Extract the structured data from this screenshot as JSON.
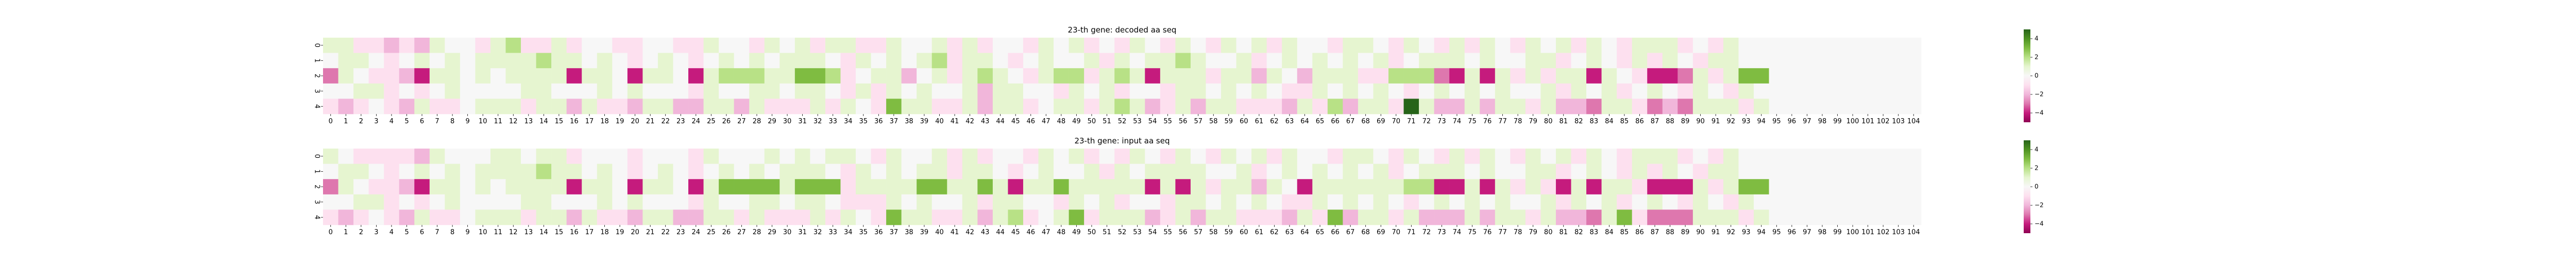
{
  "chart_data": [
    {
      "type": "heatmap",
      "title": "23-th gene: decoded aa seq",
      "x_tick_labels": [
        "0",
        "1",
        "2",
        "3",
        "4",
        "5",
        "6",
        "7",
        "8",
        "9",
        "10",
        "11",
        "12",
        "13",
        "14",
        "15",
        "16",
        "17",
        "18",
        "19",
        "20",
        "21",
        "22",
        "23",
        "24",
        "25",
        "26",
        "27",
        "28",
        "29",
        "30",
        "31",
        "32",
        "33",
        "34",
        "35",
        "36",
        "37",
        "38",
        "39",
        "40",
        "41",
        "42",
        "43",
        "44",
        "45",
        "46",
        "47",
        "48",
        "49",
        "50",
        "51",
        "52",
        "53",
        "54",
        "55",
        "56",
        "57",
        "58",
        "59",
        "60",
        "61",
        "62",
        "63",
        "64",
        "65",
        "66",
        "67",
        "68",
        "69",
        "70",
        "71",
        "72",
        "73",
        "74",
        "75",
        "76",
        "77",
        "78",
        "79",
        "80",
        "81",
        "82",
        "83",
        "84",
        "85",
        "86",
        "87",
        "88",
        "89",
        "90",
        "91",
        "92",
        "93",
        "94",
        "95",
        "96",
        "97",
        "98",
        "99",
        "100",
        "101",
        "102",
        "103",
        "104"
      ],
      "y_tick_labels": [
        "0",
        "1",
        "2",
        "3",
        "4"
      ],
      "colormap": "PiYG",
      "vmin": -5,
      "vmax": 5,
      "colorbar_ticks": [
        "4",
        "2",
        "0",
        "−2",
        "−4"
      ],
      "colorbar_tick_values": [
        4,
        2,
        0,
        -2,
        -4
      ],
      "values": [
        [
          1,
          1,
          -1,
          -1,
          -2,
          -1,
          -2,
          1,
          0,
          0,
          -1,
          1,
          2,
          -1,
          -1,
          1,
          -1,
          0,
          0,
          -1,
          -1,
          0,
          0,
          -1,
          -1,
          1,
          0,
          0,
          -1,
          1,
          0,
          1,
          -1,
          1,
          1,
          -1,
          -1,
          1,
          0,
          0,
          1,
          -1,
          1,
          -1,
          0,
          0,
          -1,
          1,
          0,
          1,
          -1,
          0,
          -1,
          1,
          0,
          -1,
          1,
          0,
          -1,
          1,
          0,
          1,
          -1,
          1,
          0,
          0,
          -1,
          1,
          1,
          0,
          -1,
          1,
          0,
          -1,
          1,
          -1,
          1,
          0,
          -1,
          1,
          0,
          1,
          -1,
          1,
          0,
          -1,
          1,
          1,
          1,
          -1,
          0,
          -1,
          1,
          0,
          0,
          0,
          0,
          0,
          0,
          0,
          0,
          0,
          0,
          0,
          0
        ],
        [
          0,
          1,
          1,
          0,
          -1,
          0,
          1,
          0,
          1,
          0,
          1,
          1,
          1,
          1,
          2,
          1,
          1,
          0,
          1,
          0,
          -1,
          0,
          1,
          0,
          -1,
          0,
          1,
          0,
          1,
          0,
          1,
          1,
          1,
          0,
          -1,
          1,
          0,
          1,
          0,
          1,
          2,
          -1,
          1,
          1,
          0,
          -1,
          0,
          1,
          0,
          0,
          1,
          -1,
          1,
          0,
          1,
          1,
          2,
          1,
          0,
          0,
          1,
          -1,
          0,
          1,
          0,
          1,
          0,
          1,
          0,
          1,
          -1,
          0,
          1,
          1,
          1,
          0,
          1,
          0,
          0,
          1,
          1,
          -1,
          0,
          1,
          0,
          -1,
          1,
          -1,
          1,
          0,
          -1,
          1,
          1,
          0,
          0,
          0,
          0,
          0,
          0,
          0,
          0,
          0,
          0,
          0,
          0
        ],
        [
          -3,
          1,
          0,
          -1,
          -1,
          -2,
          -4,
          1,
          1,
          0,
          1,
          0,
          1,
          1,
          1,
          1,
          -4,
          1,
          1,
          0,
          -4,
          1,
          1,
          0,
          -4,
          1,
          2,
          2,
          2,
          1,
          1,
          3,
          3,
          2,
          -1,
          0,
          1,
          1,
          -2,
          0,
          1,
          -1,
          1,
          2,
          1,
          0,
          -1,
          1,
          2,
          2,
          -1,
          1,
          2,
          1,
          -4,
          1,
          1,
          1,
          -1,
          1,
          1,
          -2,
          1,
          0,
          -2,
          1,
          1,
          1,
          -1,
          -1,
          2,
          2,
          2,
          -3,
          -4,
          1,
          -4,
          1,
          -1,
          1,
          -1,
          1,
          1,
          -4,
          1,
          0,
          -1,
          -4,
          -4,
          -3,
          1,
          -1,
          1,
          3,
          3,
          0,
          0,
          0,
          0,
          0,
          0,
          0,
          0,
          0,
          0
        ],
        [
          0,
          0,
          1,
          1,
          -1,
          0,
          -1,
          0,
          1,
          0,
          0,
          0,
          0,
          1,
          1,
          0,
          0,
          0,
          1,
          0,
          1,
          0,
          0,
          0,
          -1,
          1,
          0,
          0,
          1,
          1,
          0,
          1,
          1,
          0,
          -1,
          1,
          -1,
          1,
          0,
          1,
          0,
          0,
          1,
          -2,
          1,
          1,
          0,
          0,
          -1,
          1,
          0,
          1,
          -1,
          0,
          0,
          -1,
          1,
          1,
          0,
          1,
          0,
          1,
          0,
          -1,
          -1,
          1,
          0,
          1,
          0,
          1,
          0,
          -1,
          0,
          1,
          0,
          1,
          0,
          1,
          0,
          0,
          1,
          -1,
          1,
          0,
          1,
          -1,
          0,
          1,
          0,
          -1,
          1,
          0,
          -1,
          1,
          0,
          0,
          0,
          0,
          0,
          0,
          0,
          0,
          0,
          0,
          0
        ],
        [
          -1,
          -2,
          -1,
          0,
          -1,
          -2,
          1,
          -1,
          -1,
          0,
          1,
          1,
          1,
          -1,
          1,
          1,
          -2,
          1,
          -1,
          -1,
          -2,
          1,
          1,
          -2,
          -2,
          1,
          1,
          -2,
          1,
          -1,
          -1,
          -1,
          1,
          -1,
          1,
          0,
          -1,
          3,
          1,
          1,
          -1,
          -1,
          1,
          -2,
          1,
          1,
          -1,
          0,
          1,
          1,
          -1,
          1,
          2,
          1,
          -2,
          -1,
          1,
          -2,
          1,
          1,
          -1,
          -1,
          -1,
          -2,
          1,
          -1,
          2,
          -2,
          1,
          1,
          -1,
          5,
          1,
          -2,
          -2,
          1,
          -2,
          1,
          1,
          -1,
          1,
          -2,
          -2,
          -3,
          1,
          1,
          -1,
          -3,
          -2,
          -3,
          1,
          1,
          1,
          -1,
          1,
          0,
          0,
          0,
          0,
          0,
          0,
          0,
          0,
          0,
          0
        ]
      ]
    },
    {
      "type": "heatmap",
      "title": "23-th gene: input aa seq",
      "x_tick_labels": [
        "0",
        "1",
        "2",
        "3",
        "4",
        "5",
        "6",
        "7",
        "8",
        "9",
        "10",
        "11",
        "12",
        "13",
        "14",
        "15",
        "16",
        "17",
        "18",
        "19",
        "20",
        "21",
        "22",
        "23",
        "24",
        "25",
        "26",
        "27",
        "28",
        "29",
        "30",
        "31",
        "32",
        "33",
        "34",
        "35",
        "36",
        "37",
        "38",
        "39",
        "40",
        "41",
        "42",
        "43",
        "44",
        "45",
        "46",
        "47",
        "48",
        "49",
        "50",
        "51",
        "52",
        "53",
        "54",
        "55",
        "56",
        "57",
        "58",
        "59",
        "60",
        "61",
        "62",
        "63",
        "64",
        "65",
        "66",
        "67",
        "68",
        "69",
        "70",
        "71",
        "72",
        "73",
        "74",
        "75",
        "76",
        "77",
        "78",
        "79",
        "80",
        "81",
        "82",
        "83",
        "84",
        "85",
        "86",
        "87",
        "88",
        "89",
        "90",
        "91",
        "92",
        "93",
        "94",
        "95",
        "96",
        "97",
        "98",
        "99",
        "100",
        "101",
        "102",
        "103",
        "104"
      ],
      "y_tick_labels": [
        "0",
        "1",
        "2",
        "3",
        "4"
      ],
      "colormap": "PiYG",
      "vmin": -5,
      "vmax": 5,
      "colorbar_ticks": [
        "4",
        "2",
        "0",
        "−2",
        "−4"
      ],
      "colorbar_tick_values": [
        4,
        2,
        0,
        -2,
        -4
      ],
      "values": [
        [
          1,
          0,
          -1,
          -1,
          -1,
          -1,
          -2,
          1,
          0,
          0,
          0,
          1,
          1,
          0,
          1,
          1,
          -1,
          0,
          0,
          0,
          -1,
          0,
          0,
          0,
          -1,
          1,
          0,
          0,
          0,
          1,
          0,
          1,
          0,
          1,
          1,
          0,
          -1,
          1,
          0,
          0,
          1,
          -1,
          1,
          -1,
          0,
          0,
          -1,
          1,
          0,
          1,
          -1,
          0,
          -1,
          1,
          0,
          -1,
          1,
          0,
          -1,
          1,
          0,
          1,
          -1,
          1,
          0,
          0,
          -1,
          1,
          1,
          0,
          -1,
          1,
          0,
          -1,
          1,
          -1,
          1,
          0,
          -1,
          1,
          0,
          1,
          -1,
          1,
          0,
          -1,
          1,
          1,
          1,
          -1,
          0,
          -1,
          1,
          0,
          0,
          0,
          0,
          0,
          0,
          0,
          0,
          0,
          0,
          0,
          0
        ],
        [
          0,
          1,
          1,
          0,
          -1,
          0,
          1,
          0,
          1,
          0,
          1,
          1,
          1,
          1,
          2,
          1,
          1,
          0,
          1,
          0,
          -1,
          0,
          1,
          0,
          -1,
          0,
          1,
          0,
          1,
          0,
          1,
          1,
          1,
          0,
          -1,
          1,
          0,
          1,
          0,
          1,
          1,
          -1,
          1,
          1,
          0,
          -1,
          0,
          1,
          0,
          0,
          1,
          -1,
          1,
          0,
          1,
          1,
          1,
          1,
          0,
          0,
          1,
          -1,
          0,
          1,
          0,
          1,
          0,
          1,
          0,
          1,
          -1,
          0,
          1,
          1,
          1,
          0,
          1,
          0,
          0,
          1,
          1,
          -1,
          0,
          1,
          0,
          -1,
          1,
          -1,
          1,
          0,
          -1,
          1,
          1,
          0,
          0,
          0,
          0,
          0,
          0,
          0,
          0,
          0,
          0,
          0,
          0
        ],
        [
          -3,
          1,
          0,
          -1,
          -1,
          -2,
          -4,
          1,
          1,
          0,
          1,
          0,
          1,
          1,
          1,
          1,
          -4,
          1,
          1,
          0,
          -4,
          1,
          1,
          0,
          -4,
          1,
          3,
          3,
          3,
          3,
          1,
          3,
          3,
          3,
          -1,
          1,
          1,
          1,
          1,
          3,
          3,
          1,
          1,
          3,
          1,
          -4,
          1,
          1,
          3,
          1,
          1,
          1,
          1,
          1,
          -4,
          1,
          -4,
          1,
          -1,
          1,
          1,
          -2,
          1,
          0,
          -4,
          1,
          1,
          1,
          1,
          1,
          1,
          2,
          2,
          -4,
          -4,
          1,
          -4,
          1,
          -1,
          1,
          -1,
          -4,
          1,
          -4,
          1,
          1,
          -1,
          -4,
          -4,
          -4,
          1,
          -1,
          1,
          3,
          3,
          0,
          0,
          0,
          0,
          0,
          0,
          0,
          0,
          0,
          0
        ],
        [
          0,
          0,
          1,
          1,
          -1,
          0,
          -1,
          0,
          1,
          0,
          0,
          0,
          0,
          1,
          1,
          0,
          0,
          0,
          1,
          0,
          1,
          0,
          0,
          0,
          -1,
          1,
          0,
          0,
          1,
          1,
          0,
          1,
          1,
          0,
          -1,
          -1,
          -1,
          1,
          0,
          1,
          0,
          0,
          1,
          -1,
          1,
          1,
          0,
          0,
          -1,
          1,
          0,
          1,
          -1,
          0,
          0,
          -1,
          1,
          1,
          0,
          1,
          0,
          1,
          0,
          -1,
          -1,
          1,
          0,
          1,
          0,
          1,
          0,
          -1,
          0,
          1,
          0,
          1,
          0,
          1,
          0,
          0,
          1,
          -1,
          1,
          0,
          1,
          -1,
          0,
          1,
          0,
          -1,
          1,
          0,
          -1,
          1,
          0,
          0,
          0,
          0,
          0,
          0,
          0,
          0,
          0,
          0,
          0
        ],
        [
          -1,
          -2,
          -1,
          0,
          -1,
          -2,
          1,
          -1,
          -1,
          0,
          1,
          1,
          1,
          -1,
          1,
          1,
          -2,
          1,
          -1,
          -1,
          -2,
          1,
          1,
          -2,
          -2,
          1,
          1,
          -1,
          1,
          -1,
          -1,
          -1,
          1,
          -1,
          1,
          0,
          -1,
          3,
          1,
          1,
          -1,
          -1,
          1,
          -2,
          1,
          2,
          -1,
          0,
          1,
          3,
          -1,
          1,
          1,
          1,
          -2,
          -1,
          1,
          -2,
          1,
          1,
          -1,
          -1,
          -1,
          -2,
          1,
          -1,
          3,
          -2,
          1,
          1,
          -1,
          1,
          -2,
          -2,
          -2,
          1,
          -2,
          1,
          1,
          -1,
          1,
          -2,
          -2,
          -3,
          1,
          3,
          -1,
          -3,
          -3,
          -3,
          1,
          1,
          1,
          -1,
          1,
          0,
          0,
          0,
          0,
          0,
          0,
          0,
          0,
          0,
          0
        ]
      ]
    }
  ]
}
